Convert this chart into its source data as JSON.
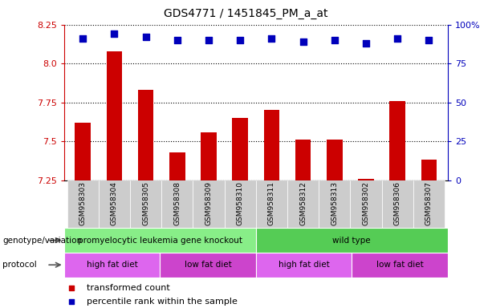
{
  "title": "GDS4771 / 1451845_PM_a_at",
  "samples": [
    "GSM958303",
    "GSM958304",
    "GSM958305",
    "GSM958308",
    "GSM958309",
    "GSM958310",
    "GSM958311",
    "GSM958312",
    "GSM958313",
    "GSM958302",
    "GSM958306",
    "GSM958307"
  ],
  "red_values": [
    7.62,
    8.08,
    7.83,
    7.43,
    7.56,
    7.65,
    7.7,
    7.51,
    7.51,
    7.26,
    7.76,
    7.38
  ],
  "blue_values": [
    91,
    94,
    92,
    90,
    90,
    90,
    91,
    89,
    90,
    88,
    91,
    90
  ],
  "ylim_left": [
    7.25,
    8.25
  ],
  "ylim_right": [
    0,
    100
  ],
  "yticks_left": [
    7.25,
    7.5,
    7.75,
    8.0,
    8.25
  ],
  "yticks_right": [
    0,
    25,
    50,
    75,
    100
  ],
  "ytick_labels_right": [
    "0",
    "25",
    "50",
    "75",
    "100%"
  ],
  "bar_color": "#cc0000",
  "dot_color": "#0000bb",
  "bar_width": 0.5,
  "dot_size": 30,
  "grid_color": "#000000",
  "bg_color": "#ffffff",
  "tick_bg": "#cccccc",
  "genotype_groups": [
    {
      "label": "promyelocytic leukemia gene knockout",
      "start": 0,
      "end": 6,
      "color": "#88ee88"
    },
    {
      "label": "wild type",
      "start": 6,
      "end": 12,
      "color": "#55cc55"
    }
  ],
  "protocol_groups": [
    {
      "label": "high fat diet",
      "start": 0,
      "end": 3,
      "color": "#dd66ee"
    },
    {
      "label": "low fat diet",
      "start": 3,
      "end": 6,
      "color": "#cc44cc"
    },
    {
      "label": "high fat diet",
      "start": 6,
      "end": 9,
      "color": "#dd66ee"
    },
    {
      "label": "low fat diet",
      "start": 9,
      "end": 12,
      "color": "#cc44cc"
    }
  ],
  "legend_red": "transformed count",
  "legend_blue": "percentile rank within the sample",
  "genotype_label": "genotype/variation",
  "protocol_label": "protocol",
  "left_axis_color": "#cc0000",
  "right_axis_color": "#0000bb"
}
